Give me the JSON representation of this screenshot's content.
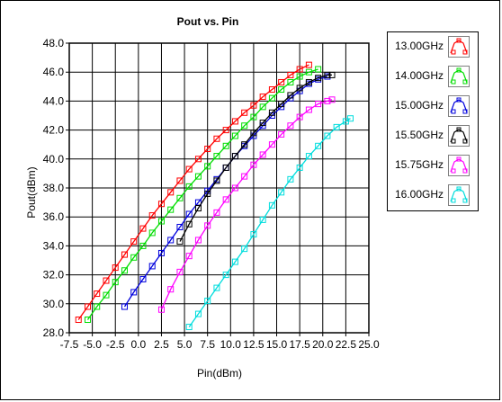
{
  "chart_data": {
    "type": "line",
    "title": "Pout vs. Pin",
    "xlabel": "Pin(dBm)",
    "ylabel": "Pout(dBm)",
    "xlim": [
      -7.5,
      25.0
    ],
    "ylim": [
      28.0,
      48.0
    ],
    "xticks": [
      "-7.5",
      "-5.0",
      "-2.5",
      "0.0",
      "2.5",
      "5.0",
      "7.5",
      "10.0",
      "12.5",
      "15.0",
      "17.5",
      "20.0",
      "22.5",
      "25.0"
    ],
    "yticks": [
      "28.0",
      "30.0",
      "32.0",
      "34.0",
      "36.0",
      "38.0",
      "40.0",
      "42.0",
      "44.0",
      "46.0",
      "48.0"
    ],
    "grid": true,
    "legend_position": "right",
    "series": [
      {
        "name": "13.00GHz",
        "color": "#ff0000",
        "x": [
          -6.5,
          -5.5,
          -4.5,
          -3.5,
          -2.5,
          -1.5,
          -0.5,
          0.5,
          1.5,
          2.5,
          3.5,
          4.5,
          5.5,
          6.5,
          7.5,
          8.5,
          9.5,
          10.5,
          11.5,
          12.5,
          13.5,
          14.5,
          15.5,
          16.5,
          17.5,
          18.5
        ],
        "y": [
          28.9,
          29.8,
          30.7,
          31.6,
          32.5,
          33.4,
          34.3,
          35.2,
          36.1,
          36.9,
          37.7,
          38.5,
          39.3,
          40.0,
          40.7,
          41.4,
          42.0,
          42.6,
          43.2,
          43.7,
          44.3,
          44.8,
          45.3,
          45.8,
          46.2,
          46.5
        ]
      },
      {
        "name": "14.00GHz",
        "color": "#00dd00",
        "x": [
          -5.5,
          -4.5,
          -3.5,
          -2.5,
          -1.5,
          -0.5,
          0.5,
          1.5,
          2.5,
          3.5,
          4.5,
          5.5,
          6.5,
          7.5,
          8.5,
          9.5,
          10.5,
          11.5,
          12.5,
          13.5,
          14.5,
          15.5,
          16.5,
          17.5,
          18.5,
          19.5
        ],
        "y": [
          28.9,
          29.8,
          30.6,
          31.5,
          32.3,
          33.2,
          34.0,
          34.9,
          35.7,
          36.5,
          37.3,
          38.1,
          38.8,
          39.5,
          40.2,
          40.9,
          41.6,
          42.3,
          42.9,
          43.6,
          44.2,
          44.8,
          45.3,
          45.7,
          46.0,
          46.2
        ]
      },
      {
        "name": "15.00GHz",
        "color": "#0000dd",
        "x": [
          -1.5,
          -0.5,
          0.5,
          1.5,
          2.5,
          3.5,
          4.5,
          5.5,
          6.5,
          7.5,
          8.5,
          9.5,
          10.5,
          11.5,
          12.5,
          13.5,
          14.5,
          15.5,
          16.5,
          17.5,
          18.5,
          19.5,
          20.5
        ],
        "y": [
          29.8,
          30.8,
          31.7,
          32.6,
          33.5,
          34.4,
          35.3,
          36.2,
          37.0,
          37.8,
          38.6,
          39.4,
          40.2,
          40.9,
          41.6,
          42.3,
          43.0,
          43.6,
          44.2,
          44.7,
          45.2,
          45.5,
          45.7
        ]
      },
      {
        "name": "15.50GHz",
        "color": "#000000",
        "x": [
          4.5,
          5.5,
          6.5,
          7.5,
          8.5,
          9.5,
          10.5,
          11.5,
          12.5,
          13.5,
          14.5,
          15.5,
          16.5,
          17.5,
          18.5,
          19.5,
          20.5,
          21.0
        ],
        "y": [
          34.3,
          35.5,
          36.6,
          37.6,
          38.5,
          39.4,
          40.2,
          41.0,
          41.8,
          42.5,
          43.2,
          43.8,
          44.4,
          44.9,
          45.3,
          45.6,
          45.8,
          45.8
        ]
      },
      {
        "name": "15.75GHz",
        "color": "#ff00ff",
        "x": [
          2.5,
          3.5,
          4.5,
          5.5,
          6.5,
          7.5,
          8.5,
          9.5,
          10.5,
          11.5,
          12.5,
          13.5,
          14.5,
          15.5,
          16.5,
          17.5,
          18.5,
          19.5,
          20.5,
          21.0
        ],
        "y": [
          29.6,
          31.0,
          32.2,
          33.3,
          34.4,
          35.4,
          36.3,
          37.2,
          38.0,
          38.8,
          39.6,
          40.3,
          41.0,
          41.7,
          42.3,
          42.9,
          43.4,
          43.8,
          44.0,
          44.1
        ]
      },
      {
        "name": "16.00GHz",
        "color": "#00dddd",
        "x": [
          5.5,
          6.5,
          7.5,
          8.5,
          9.5,
          10.5,
          11.5,
          12.5,
          13.5,
          14.5,
          15.5,
          16.5,
          17.5,
          18.5,
          19.5,
          20.5,
          21.5,
          22.5,
          23.0
        ],
        "y": [
          28.4,
          29.3,
          30.2,
          31.1,
          32.0,
          32.9,
          33.8,
          34.8,
          35.8,
          36.8,
          37.7,
          38.6,
          39.4,
          40.2,
          40.9,
          41.6,
          42.2,
          42.6,
          42.8
        ]
      }
    ]
  }
}
